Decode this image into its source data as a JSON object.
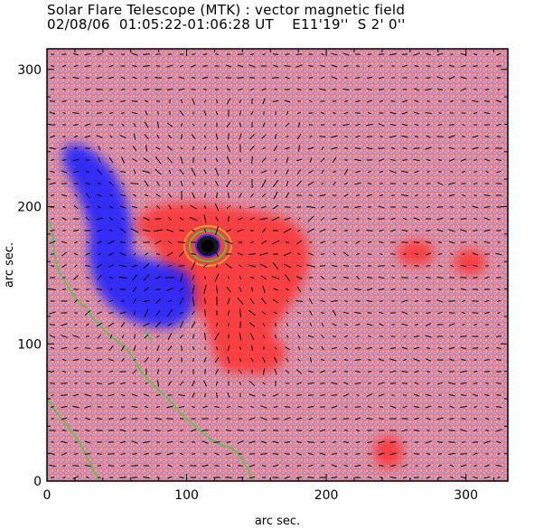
{
  "header": {
    "title": "Solar Flare Telescope (MTK) : vector magnetic field",
    "subtitle": "02/08/06  01:05:22-01:06:28 UT    E11'19''  S 2' 0''"
  },
  "chart_data": {
    "type": "heatmap",
    "xlabel": "arc sec.",
    "ylabel": "arc sec.",
    "xlim": [
      0,
      330
    ],
    "ylim": [
      0,
      315
    ],
    "x_ticks": [
      0,
      100,
      200,
      300
    ],
    "y_ticks": [
      0,
      100,
      200,
      300
    ],
    "colors": {
      "positive_polarity": "#ff4a4a",
      "negative_polarity": "#3333ff",
      "background": "#e07a8a",
      "vectors": "#000000",
      "contours": "#3ecf3e"
    },
    "sunspot_center": [
      120,
      172
    ],
    "grid": false,
    "legend": "none"
  }
}
